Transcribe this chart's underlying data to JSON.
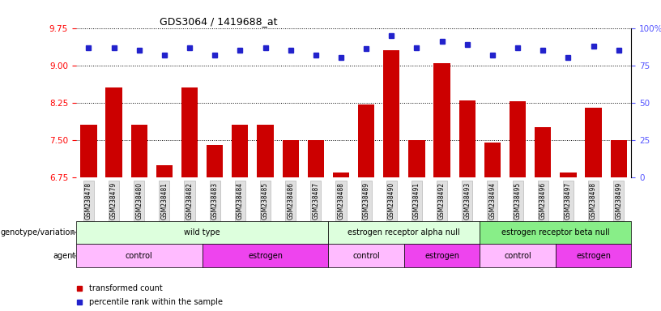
{
  "title": "GDS3064 / 1419688_at",
  "samples": [
    "GSM238478",
    "GSM238479",
    "GSM238480",
    "GSM238481",
    "GSM238482",
    "GSM238483",
    "GSM238484",
    "GSM238485",
    "GSM238486",
    "GSM238487",
    "GSM238488",
    "GSM238489",
    "GSM238490",
    "GSM238491",
    "GSM238492",
    "GSM238493",
    "GSM238494",
    "GSM238495",
    "GSM238496",
    "GSM238497",
    "GSM238498",
    "GSM238499"
  ],
  "bar_values": [
    7.8,
    8.55,
    7.8,
    7.0,
    8.55,
    7.4,
    7.8,
    7.8,
    7.5,
    7.5,
    6.85,
    8.22,
    9.3,
    7.5,
    9.05,
    8.3,
    7.45,
    8.28,
    7.75,
    6.85,
    8.15,
    7.5
  ],
  "blue_dot_values": [
    87,
    87,
    85,
    82,
    87,
    82,
    85,
    87,
    85,
    82,
    80,
    86,
    95,
    87,
    91,
    89,
    82,
    87,
    85,
    80,
    88,
    85
  ],
  "ylim_left": [
    6.75,
    9.75
  ],
  "ylim_right": [
    0,
    100
  ],
  "yticks_left": [
    6.75,
    7.5,
    8.25,
    9.0,
    9.75
  ],
  "yticks_right": [
    0,
    25,
    50,
    75,
    100
  ],
  "bar_color": "#cc0000",
  "dot_color": "#2222cc",
  "background_color": "#ffffff",
  "genotype_groups": [
    {
      "label": "wild type",
      "start": 0,
      "end": 10,
      "color": "#ddffdd"
    },
    {
      "label": "estrogen receptor alpha null",
      "start": 10,
      "end": 16,
      "color": "#ddffdd"
    },
    {
      "label": "estrogen receptor beta null",
      "start": 16,
      "end": 22,
      "color": "#88ee88"
    }
  ],
  "agent_groups": [
    {
      "label": "control",
      "start": 0,
      "end": 5,
      "color": "#ffbbff"
    },
    {
      "label": "estrogen",
      "start": 5,
      "end": 10,
      "color": "#ee44ee"
    },
    {
      "label": "control",
      "start": 10,
      "end": 13,
      "color": "#ffbbff"
    },
    {
      "label": "estrogen",
      "start": 13,
      "end": 16,
      "color": "#ee44ee"
    },
    {
      "label": "control",
      "start": 16,
      "end": 19,
      "color": "#ffbbff"
    },
    {
      "label": "estrogen",
      "start": 19,
      "end": 22,
      "color": "#ee44ee"
    }
  ],
  "legend_items": [
    {
      "label": "transformed count",
      "color": "#cc0000"
    },
    {
      "label": "percentile rank within the sample",
      "color": "#2222cc"
    }
  ]
}
